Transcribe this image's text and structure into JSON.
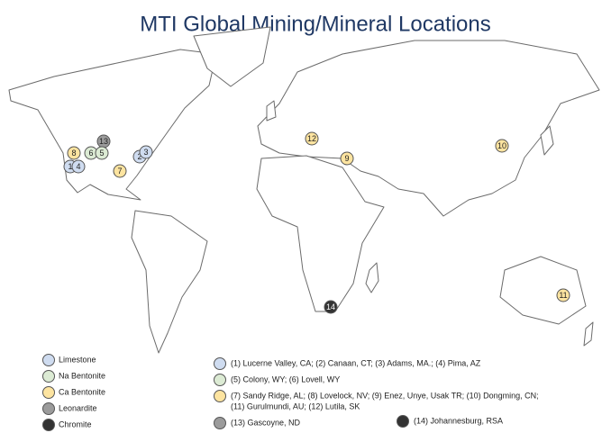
{
  "title": "MTI Global Mining/Mineral Locations",
  "legend": [
    {
      "label": "Limestone",
      "color": "#cfdcf0"
    },
    {
      "label": "Na Bentonite",
      "color": "#dcebd4"
    },
    {
      "label": "Ca Bentonite",
      "color": "#fde4a0"
    },
    {
      "label": "Leonardite",
      "color": "#9b9b9b"
    },
    {
      "label": "Chromite",
      "color": "#333333"
    }
  ],
  "notes": [
    {
      "lines": [
        "(1) Lucerne Valley, CA; (2) Canaan, CT; (3) Adams, MA.; (4) Pima, AZ"
      ],
      "color": "#cfdcf0"
    },
    {
      "lines": [
        "(5) Colony, WY; (6) Lovell, WY"
      ],
      "color": "#dcebd4"
    },
    {
      "lines": [
        "(7) Sandy Ridge, AL; (8) Lovelock, NV; (9) Enez, Unye, Usak TR; (10) Dongming, CN;",
        "(11) Gurulmundi, AU; (12) Lutila, SK"
      ],
      "color": "#fde4a0"
    },
    {
      "lines": [
        "(13) Gascoyne, ND"
      ],
      "color": "#9b9b9b"
    },
    {
      "lines": [
        "(14) Johannesburg, RSA"
      ],
      "color": "#333333"
    }
  ],
  "markers": [
    {
      "label": "13",
      "color": "#9b9b9b"
    },
    {
      "label": "8",
      "color": "#fde4a0"
    },
    {
      "label": "6",
      "color": "#dcebd4"
    },
    {
      "label": "5",
      "color": "#dcebd4"
    },
    {
      "label": "1",
      "color": "#cfdcf0"
    },
    {
      "label": "4",
      "color": "#cfdcf0"
    },
    {
      "label": "2",
      "color": "#cfdcf0"
    },
    {
      "label": "3",
      "color": "#cfdcf0"
    },
    {
      "label": "7",
      "color": "#fde4a0"
    },
    {
      "label": "12",
      "color": "#fde4a0"
    },
    {
      "label": "9",
      "color": "#fde4a0"
    },
    {
      "label": "10",
      "color": "#fde4a0"
    },
    {
      "label": "11",
      "color": "#fde4a0"
    },
    {
      "label": "14",
      "color": "#333333"
    }
  ]
}
